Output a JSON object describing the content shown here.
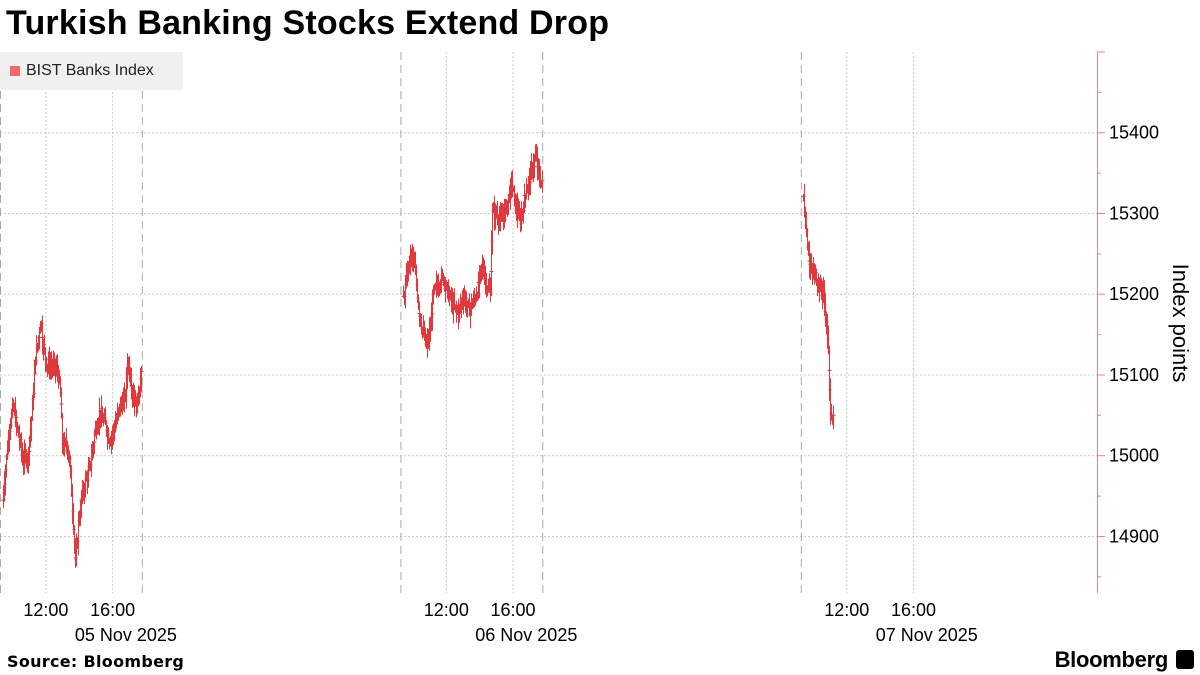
{
  "title": "Turkish Banking Stocks Extend Drop",
  "source": "Source: Bloomberg",
  "brand": "Bloomberg",
  "brand_icon": "bloomberg-terminal-icon",
  "colors": {
    "series": "#e0383c",
    "legend_swatch": "#f26b6b",
    "grid": "#c8c8c8",
    "axis": "#f08080",
    "day_divider": "#aaaaaa"
  },
  "chart_data": {
    "type": "line",
    "subtype": "ohlc-bars",
    "legend": [
      "BIST Banks Index"
    ],
    "ylabel": "Index points",
    "xlabel": "",
    "ylim": [
      14830,
      15500
    ],
    "yticks": [
      14900,
      15000,
      15100,
      15200,
      15300,
      15400
    ],
    "ytick_labels": [
      "14900",
      "15000",
      "15100",
      "15200",
      "15300",
      "15400"
    ],
    "xlim_hours": [
      9.25,
      75.0
    ],
    "xticks_hours": [
      12,
      16,
      36,
      40,
      60,
      64
    ],
    "xtick_labels": [
      "12:00",
      "16:00",
      "12:00",
      "16:00",
      "12:00",
      "16:00"
    ],
    "day_labels": [
      "05 Nov 2025",
      "06 Nov 2025",
      "07 Nov 2025"
    ],
    "day_label_hours": [
      12.0,
      36.0,
      60.0
    ],
    "session_break_hours": [
      9.25,
      17.75,
      33.25,
      41.75,
      57.25
    ],
    "grid": true,
    "series": [
      {
        "name": "BIST Banks Index",
        "sessions": [
          {
            "start_hour": 9.4,
            "end_hour": 17.75,
            "keypoints": [
              [
                9.4,
                14945
              ],
              [
                9.7,
                15020
              ],
              [
                10.0,
                15060
              ],
              [
                10.3,
                15030
              ],
              [
                10.6,
                14995
              ],
              [
                10.9,
                15000
              ],
              [
                11.1,
                15040
              ],
              [
                11.3,
                15110
              ],
              [
                11.5,
                15140
              ],
              [
                11.65,
                15170
              ],
              [
                11.8,
                15140
              ],
              [
                12.0,
                15115
              ],
              [
                12.4,
                15110
              ],
              [
                12.7,
                15105
              ],
              [
                12.9,
                15060
              ],
              [
                13.0,
                15010
              ],
              [
                13.2,
                15015
              ],
              [
                13.4,
                14995
              ],
              [
                13.55,
                14940
              ],
              [
                13.75,
                14860
              ],
              [
                13.95,
                14925
              ],
              [
                14.3,
                14965
              ],
              [
                14.6,
                14985
              ],
              [
                14.9,
                15025
              ],
              [
                15.2,
                15055
              ],
              [
                15.5,
                15040
              ],
              [
                15.8,
                15020
              ],
              [
                16.1,
                15035
              ],
              [
                16.4,
                15060
              ],
              [
                16.7,
                15070
              ],
              [
                16.9,
                15120
              ],
              [
                17.15,
                15080
              ],
              [
                17.4,
                15060
              ],
              [
                17.6,
                15090
              ],
              [
                17.75,
                15100
              ]
            ]
          },
          {
            "start_hour": 33.4,
            "end_hour": 41.75,
            "keypoints": [
              [
                33.4,
                15195
              ],
              [
                33.7,
                15235
              ],
              [
                33.9,
                15250
              ],
              [
                34.1,
                15230
              ],
              [
                34.3,
                15185
              ],
              [
                34.6,
                15150
              ],
              [
                34.8,
                15135
              ],
              [
                35.0,
                15155
              ],
              [
                35.2,
                15200
              ],
              [
                35.5,
                15215
              ],
              [
                35.8,
                15220
              ],
              [
                36.1,
                15200
              ],
              [
                36.4,
                15185
              ],
              [
                36.7,
                15175
              ],
              [
                37.0,
                15200
              ],
              [
                37.3,
                15180
              ],
              [
                37.6,
                15190
              ],
              [
                37.9,
                15210
              ],
              [
                38.1,
                15235
              ],
              [
                38.3,
                15220
              ],
              [
                38.6,
                15200
              ],
              [
                38.75,
                15300
              ],
              [
                39.0,
                15300
              ],
              [
                39.3,
                15290
              ],
              [
                39.6,
                15310
              ],
              [
                39.9,
                15340
              ],
              [
                40.1,
                15310
              ],
              [
                40.4,
                15290
              ],
              [
                40.7,
                15325
              ],
              [
                41.0,
                15345
              ],
              [
                41.3,
                15370
              ],
              [
                41.55,
                15345
              ],
              [
                41.75,
                15335
              ]
            ]
          },
          {
            "start_hour": 57.4,
            "end_hour": 59.2,
            "keypoints": [
              [
                57.4,
                15320
              ],
              [
                57.6,
                15265
              ],
              [
                57.8,
                15230
              ],
              [
                58.0,
                15225
              ],
              [
                58.2,
                15220
              ],
              [
                58.4,
                15205
              ],
              [
                58.6,
                15200
              ],
              [
                58.8,
                15150
              ],
              [
                59.0,
                15060
              ],
              [
                59.2,
                15040
              ]
            ]
          }
        ]
      }
    ]
  }
}
